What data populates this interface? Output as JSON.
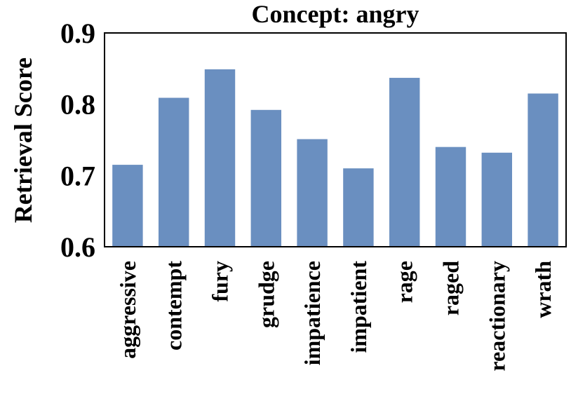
{
  "chart_data": {
    "type": "bar",
    "title": "Concept: angry",
    "xlabel": "",
    "ylabel": "Retrieval Score",
    "ylim": [
      0.6,
      0.9
    ],
    "yticks": [
      "0.6",
      "0.7",
      "0.8",
      "0.9"
    ],
    "grid": false,
    "bar_color": "#6a8fc0",
    "categories": [
      "aggressive",
      "contempt",
      "fury",
      "grudge",
      "impatience",
      "impatient",
      "rage",
      "raged",
      "reactionary",
      "wrath"
    ],
    "values": [
      0.715,
      0.809,
      0.849,
      0.792,
      0.751,
      0.71,
      0.837,
      0.74,
      0.732,
      0.815
    ]
  }
}
